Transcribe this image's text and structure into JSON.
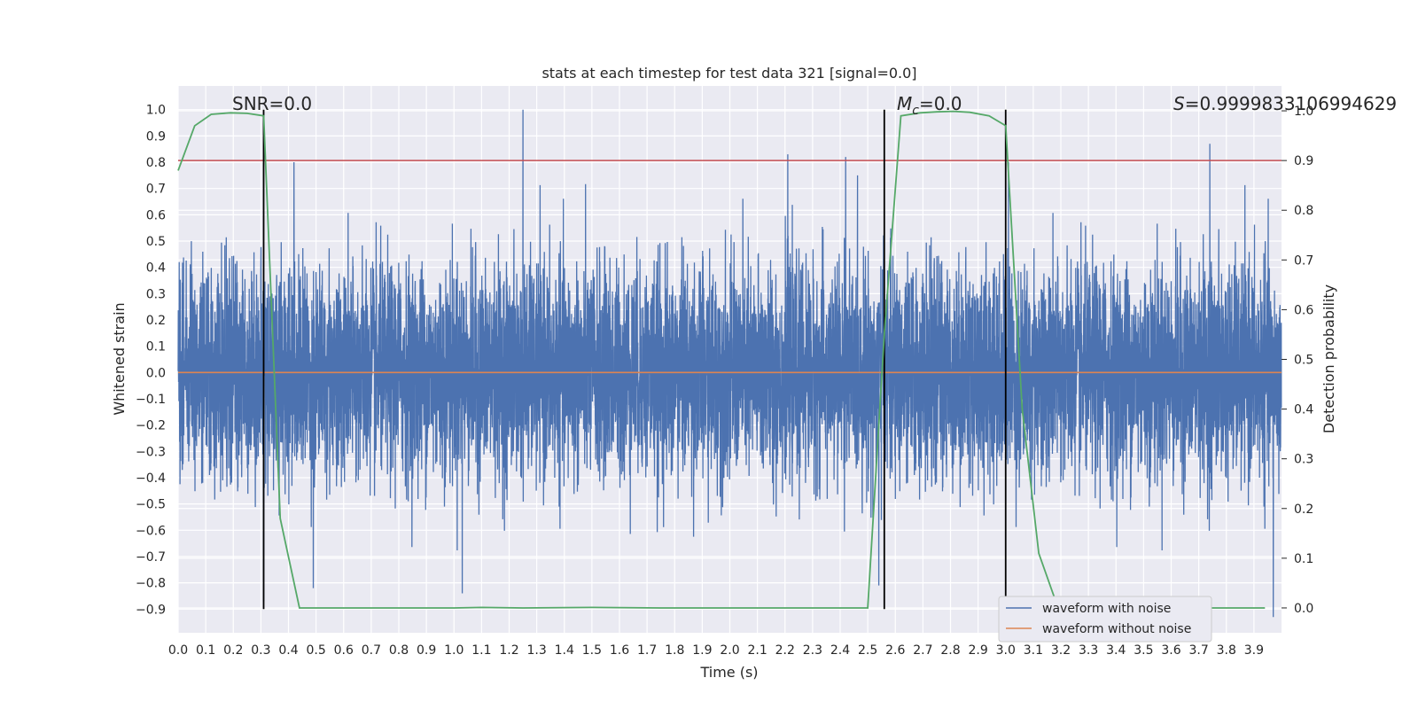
{
  "chart_data": {
    "type": "line",
    "title": "stats at each timestep for test data 321 [signal=0.0]",
    "xlabel": "Time (s)",
    "ylabel": "Whitened strain",
    "y2label": "Detection probability",
    "xlim": [
      0.0,
      4.0
    ],
    "ylim": [
      -0.99,
      1.09
    ],
    "y2lim": [
      -0.05,
      1.05
    ],
    "x_ticks": [
      0.0,
      0.1,
      0.2,
      0.3,
      0.4,
      0.5,
      0.6,
      0.7,
      0.8,
      0.9,
      1.0,
      1.1,
      1.2,
      1.3,
      1.4,
      1.5,
      1.6,
      1.7,
      1.8,
      1.9,
      2.0,
      2.1,
      2.2,
      2.3,
      2.4,
      2.5,
      2.6,
      2.7,
      2.8,
      2.9,
      3.0,
      3.1,
      3.2,
      3.3,
      3.4,
      3.5,
      3.6,
      3.7,
      3.8,
      3.9
    ],
    "y_ticks": [
      -0.9,
      -0.8,
      -0.7,
      -0.6,
      -0.5,
      -0.4,
      -0.3,
      -0.2,
      -0.1,
      0.0,
      0.1,
      0.2,
      0.3,
      0.4,
      0.5,
      0.6,
      0.7,
      0.8,
      0.9,
      1.0
    ],
    "y2_ticks": [
      0.0,
      0.1,
      0.2,
      0.3,
      0.4,
      0.5,
      0.6,
      0.7,
      0.8,
      0.9,
      1.0
    ],
    "grid": true,
    "legend_position": "lower-right",
    "annotations": {
      "snr": "SNR=0.0",
      "mc_prefix": "M",
      "mc_sub": "c",
      "mc_suffix": "=0.0",
      "s_prefix": "S",
      "s_suffix": "=0.9999833106994629"
    },
    "series": [
      {
        "name": "waveform with noise",
        "color": "#4c72b0",
        "axis": "left",
        "sample_rate_hz": 2048,
        "amplitude_max_envelope": 0.45,
        "spikes": [
          {
            "x": 0.31,
            "y": 0.99
          },
          {
            "x": 0.31,
            "y": -0.87
          },
          {
            "x": 0.42,
            "y": 0.8
          },
          {
            "x": 0.49,
            "y": -0.82
          },
          {
            "x": 1.03,
            "y": -0.84
          },
          {
            "x": 1.25,
            "y": 1.0
          },
          {
            "x": 2.21,
            "y": 0.83
          },
          {
            "x": 2.42,
            "y": 0.82
          },
          {
            "x": 2.54,
            "y": -0.81
          },
          {
            "x": 3.01,
            "y": 0.8
          },
          {
            "x": 3.74,
            "y": 0.87
          },
          {
            "x": 3.97,
            "y": -0.93
          }
        ]
      },
      {
        "name": "waveform without noise",
        "color": "#dd8452",
        "axis": "left",
        "x": [
          0.0,
          4.0
        ],
        "y": [
          0.0,
          0.0
        ]
      },
      {
        "name": "detection probability",
        "color": "#55a868",
        "axis": "right",
        "x": [
          0.0,
          0.06,
          0.12,
          0.19,
          0.25,
          0.31,
          0.37,
          0.44,
          0.5,
          0.75,
          1.0,
          1.1,
          1.25,
          1.5,
          1.75,
          2.0,
          2.25,
          2.5,
          2.56,
          2.62,
          2.69,
          2.75,
          2.81,
          2.87,
          2.94,
          3.0,
          3.06,
          3.12,
          3.19,
          3.25,
          3.5,
          3.75,
          3.94
        ],
        "y": [
          0.88,
          0.97,
          0.993,
          0.996,
          0.995,
          0.99,
          0.18,
          0.0,
          0.0,
          0.0,
          0.0,
          0.001,
          0.0,
          0.001,
          0.0,
          0.0,
          0.0,
          0.0,
          0.55,
          0.99,
          0.996,
          0.998,
          0.999,
          0.997,
          0.99,
          0.97,
          0.4,
          0.11,
          0.0,
          0.0,
          0.0,
          0.0,
          0.0
        ]
      }
    ],
    "threshold_line": {
      "color": "#c44e52",
      "axis": "right",
      "y": 0.9
    },
    "vertical_markers": {
      "color": "#000000",
      "x": [
        0.31,
        2.56,
        3.0
      ]
    }
  }
}
